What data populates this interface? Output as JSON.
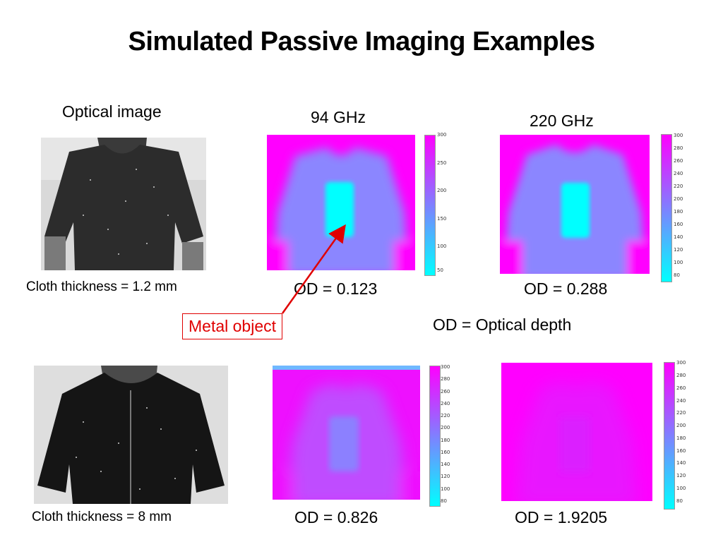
{
  "title": "Simulated Passive Imaging Examples",
  "labels": {
    "optical_image": "Optical image",
    "freq_94": "94 GHz",
    "freq_220": "220 GHz",
    "cloth_top": "Cloth thickness = 1.2 mm",
    "cloth_bottom": "Cloth thickness = 8 mm",
    "od_definition": "OD = Optical depth",
    "metal_object": "Metal object"
  },
  "panels": {
    "top_94": {
      "od": "OD = 0.123",
      "ticks": [
        "300",
        "250",
        "200",
        "150",
        "100",
        "50"
      ]
    },
    "top_220": {
      "od": "OD = 0.288",
      "ticks": [
        "300",
        "280",
        "260",
        "240",
        "220",
        "200",
        "180",
        "160",
        "140",
        "120",
        "100",
        "80"
      ]
    },
    "bottom_94": {
      "od": "OD = 0.826",
      "ticks": [
        "300",
        "280",
        "260",
        "240",
        "220",
        "200",
        "180",
        "160",
        "140",
        "120",
        "100",
        "80"
      ]
    },
    "bottom_220": {
      "od": "OD = 1.9205",
      "ticks": [
        "300",
        "280",
        "260",
        "240",
        "220",
        "200",
        "180",
        "160",
        "140",
        "120",
        "100",
        "80"
      ]
    }
  },
  "colors": {
    "colormap_high": "#ff00ff",
    "colormap_mid": "#7f80ff",
    "colormap_low": "#00ffff",
    "annotation": "#e00000"
  }
}
